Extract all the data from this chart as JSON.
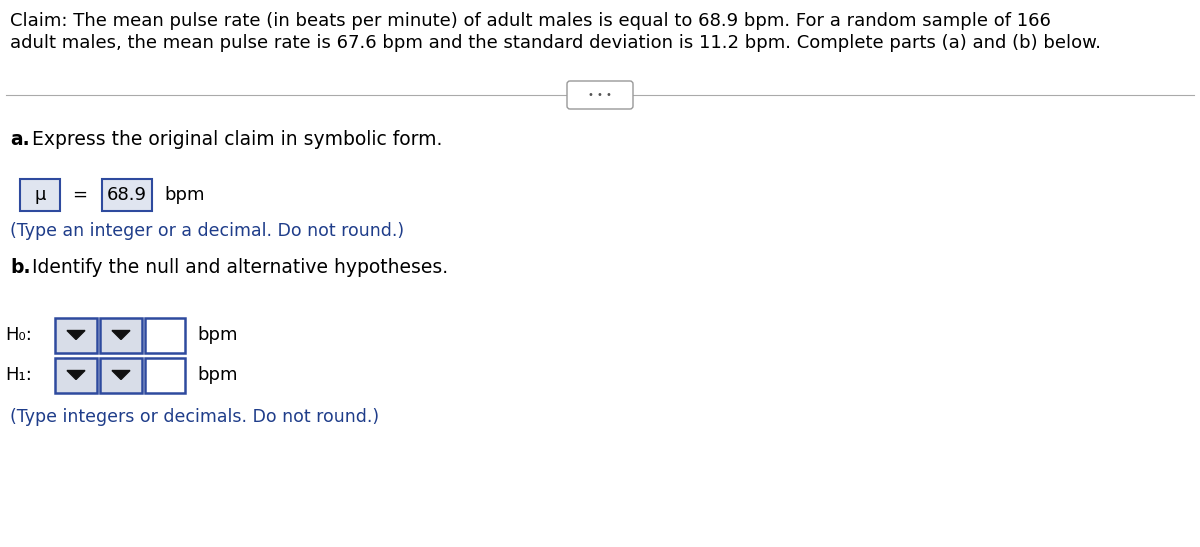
{
  "background_color": "#ffffff",
  "header_line1": "Claim: The mean pulse rate (in beats per minute) of adult males is equal to 68.9 bpm. For a random sample of 166",
  "header_line2": "adult males, the mean pulse rate is 67.6 bpm and the standard deviation is 11.2 bpm. Complete parts (a) and (b) below.",
  "dots_text": "• • •",
  "part_a_label_bold": "a.",
  "part_a_label_rest": " Express the original claim in symbolic form.",
  "mu_symbol": "μ",
  "equals_sign": "=",
  "value_68_9": "68.9",
  "bpm_text": "bpm",
  "type_hint_a": "(Type an integer or a decimal. Do not round.)",
  "part_b_label_bold": "b.",
  "part_b_label_rest": " Identify the null and alternative hypotheses.",
  "H0_label": "H₀:",
  "H1_label": "H₁:",
  "bpm_text2": "bpm",
  "bpm_text3": "bpm",
  "type_hint_b": "(Type integers or decimals. Do not round.)",
  "hint_color": "#1f3d8a",
  "box_border_color": "#2e4a9e",
  "box_fill_color": "#e0e5f0",
  "box_fill_color2": "#d8dde8",
  "text_color": "#000000",
  "font_size_header": 13,
  "font_size_body": 13.5,
  "font_size_hint": 12.5
}
